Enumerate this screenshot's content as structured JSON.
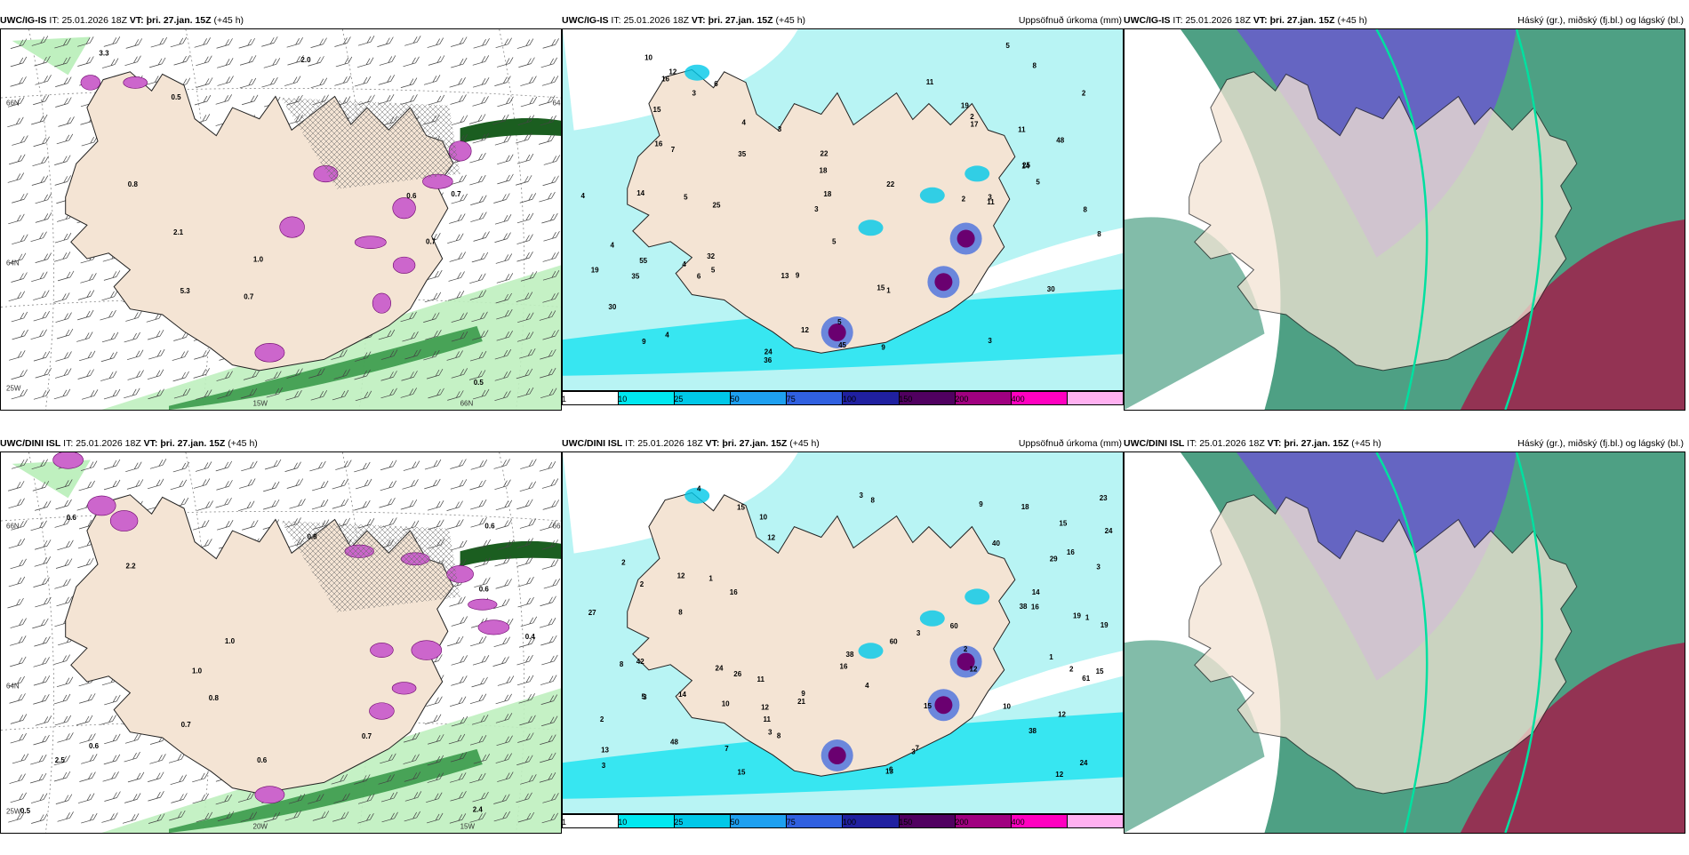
{
  "rows": [
    {
      "model": "UWC/IG-IS",
      "panels": [
        {
          "kind": "wind",
          "model": "UWC/IG-IS",
          "it_label": "IT:",
          "it_value": "25.01.2026 18Z",
          "vt_label": "VT:",
          "vt_value": "þri. 27.jan. 15Z",
          "lead": "(+45 h)",
          "field_title": "",
          "axis_labels": [
            "66N",
            "64N",
            "25W",
            "15W",
            "66N",
            "64N"
          ],
          "value_labels": [
            "1.0",
            "0.8",
            "3.3",
            "0.7",
            "0.5",
            "0.5",
            "0.7",
            "2.1",
            "5.3",
            "0.6",
            "0.7",
            "2.0"
          ]
        },
        {
          "kind": "precip",
          "model": "UWC/IG-IS",
          "it_label": "IT:",
          "it_value": "25.01.2026 18Z",
          "vt_label": "VT:",
          "vt_value": "þri. 27.jan. 15Z",
          "lead": "(+45 h)",
          "field_title": "Uppsöfnuð úrkoma (mm)",
          "value_labels": [
            "2",
            "3",
            "3",
            "5",
            "5",
            "3",
            "3",
            "4",
            "9",
            "8",
            "6",
            "3",
            "24",
            "48",
            "9",
            "2",
            "1",
            "22",
            "14",
            "22",
            "15",
            "15",
            "32",
            "11",
            "13",
            "30",
            "12",
            "7",
            "8",
            "11",
            "25",
            "45",
            "36",
            "19",
            "55",
            "35",
            "16",
            "4",
            "19",
            "18",
            "11",
            "14",
            "8",
            "25",
            "35",
            "30",
            "12",
            "10",
            "4",
            "2",
            "5",
            "4",
            "4",
            "5",
            "5",
            "5",
            "16",
            "18",
            "17",
            "9",
            "6"
          ],
          "colorbar": {
            "ticks": [
              "1",
              "10",
              "25",
              "50",
              "75",
              "100",
              "150",
              "200",
              "400"
            ],
            "colors": [
              "#ffffff",
              "#00e8f0",
              "#00c8e8",
              "#1ea0f0",
              "#3060e0",
              "#2020a0",
              "#500060",
              "#a00080",
              "#ff00c0",
              "#ffb0f0"
            ]
          }
        },
        {
          "kind": "cloud",
          "model": "UWC/IG-IS",
          "it_label": "IT:",
          "it_value": "25.01.2026 18Z",
          "vt_label": "VT:",
          "vt_value": "þri. 27.jan. 15Z",
          "lead": "(+45 h)",
          "field_title": "Háský (gr.), miðský (fj.bl.) og lágský (bl.)"
        }
      ]
    },
    {
      "model": "UWC/DINI ISL",
      "panels": [
        {
          "kind": "wind",
          "model": "UWC/DINI ISL",
          "it_label": "IT:",
          "it_value": "25.01.2026 18Z",
          "vt_label": "VT:",
          "vt_value": "þri. 27.jan. 15Z",
          "lead": "(+45 h)",
          "field_title": "",
          "axis_labels": [
            "66N",
            "64N",
            "25W",
            "20W",
            "15W",
            "66N"
          ],
          "value_labels": [
            "0.4",
            "0.8",
            "0.6",
            "0.7",
            "0.7",
            "0.6",
            "0.6",
            "1.0",
            "2.5",
            "0.5",
            "0.6",
            "0.8",
            "1.0",
            "2.4",
            "0.6",
            "2.2"
          ]
        },
        {
          "kind": "precip",
          "model": "UWC/DINI ISL",
          "it_label": "IT:",
          "it_value": "25.01.2026 18Z",
          "vt_label": "VT:",
          "vt_value": "þri. 27.jan. 15Z",
          "lead": "(+45 h)",
          "field_title": "Uppsöfnuð úrkoma (mm)",
          "value_labels": [
            "1",
            "3",
            "2",
            "3",
            "2",
            "1",
            "12",
            "26",
            "48",
            "4",
            "3",
            "2",
            "3",
            "3",
            "1",
            "16",
            "15",
            "8",
            "5",
            "14",
            "15",
            "18",
            "24",
            "12",
            "24",
            "60",
            "29",
            "16",
            "42",
            "60",
            "61",
            "38",
            "38",
            "9",
            "2",
            "3",
            "15",
            "10",
            "21",
            "23",
            "7",
            "8",
            "9",
            "8",
            "16",
            "15",
            "11",
            "13",
            "19",
            "12",
            "40",
            "27",
            "12",
            "38",
            "16",
            "12",
            "13",
            "10",
            "19",
            "15",
            "14",
            "12",
            "10",
            "11",
            "24",
            "3",
            "6",
            "4",
            "2",
            "7",
            "8"
          ],
          "colorbar": {
            "ticks": [
              "1",
              "10",
              "25",
              "50",
              "75",
              "100",
              "150",
              "200",
              "400"
            ],
            "colors": [
              "#ffffff",
              "#00e8f0",
              "#00c8e8",
              "#1ea0f0",
              "#3060e0",
              "#2020a0",
              "#500060",
              "#a00080",
              "#ff00c0",
              "#ffb0f0"
            ]
          }
        },
        {
          "kind": "cloud",
          "model": "UWC/DINI ISL",
          "it_label": "IT:",
          "it_value": "25.01.2026 18Z",
          "vt_label": "VT:",
          "vt_value": "þri. 27.jan. 15Z",
          "lead": "(+45 h)",
          "field_title": "Háský (gr.), miðský (fj.bl.) og lágský (bl.)"
        }
      ]
    }
  ],
  "colors": {
    "land": "#f4e4d4",
    "sea_wind": "#ffffff",
    "precip_light_green": "#bff0bf",
    "precip_green": "#3a9a4a",
    "precip_dark_green": "#1b5e20",
    "snow_magenta": "#cc66cc",
    "precip_sea": "#b8f4f4",
    "cloud_high": "#2f8f6f",
    "cloud_mid": "#6a5acd",
    "cloud_low": "#a0204a",
    "cloud_outline": "#00e0a0"
  }
}
